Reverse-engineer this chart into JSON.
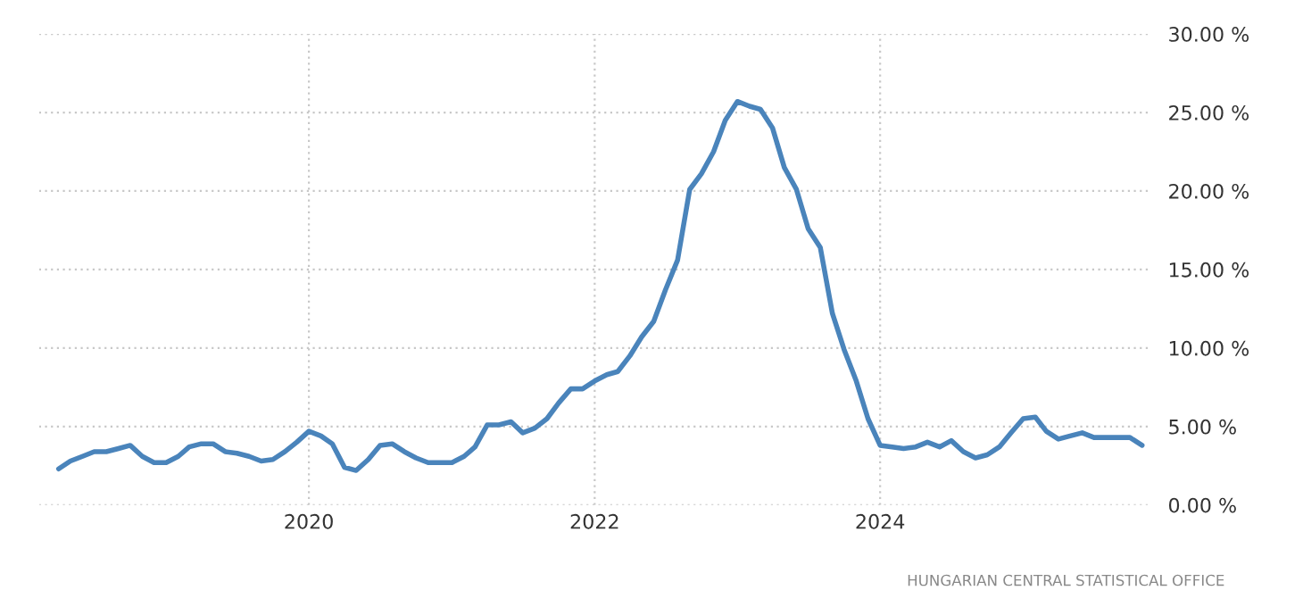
{
  "chart_data": {
    "type": "line",
    "x": [
      "2018-04",
      "2018-05",
      "2018-06",
      "2018-07",
      "2018-08",
      "2018-09",
      "2018-10",
      "2018-11",
      "2018-12",
      "2019-01",
      "2019-02",
      "2019-03",
      "2019-04",
      "2019-05",
      "2019-06",
      "2019-07",
      "2019-08",
      "2019-09",
      "2019-10",
      "2019-11",
      "2019-12",
      "2020-01",
      "2020-02",
      "2020-03",
      "2020-04",
      "2020-05",
      "2020-06",
      "2020-07",
      "2020-08",
      "2020-09",
      "2020-10",
      "2020-11",
      "2020-12",
      "2021-01",
      "2021-02",
      "2021-03",
      "2021-04",
      "2021-05",
      "2021-06",
      "2021-07",
      "2021-08",
      "2021-09",
      "2021-10",
      "2021-11",
      "2021-12",
      "2022-01",
      "2022-02",
      "2022-03",
      "2022-04",
      "2022-05",
      "2022-06",
      "2022-07",
      "2022-08",
      "2022-09",
      "2022-10",
      "2022-11",
      "2022-12",
      "2023-01",
      "2023-02",
      "2023-03",
      "2023-04",
      "2023-05",
      "2023-06",
      "2023-07",
      "2023-08",
      "2023-09",
      "2023-10",
      "2023-11",
      "2023-12",
      "2024-01",
      "2024-02",
      "2024-03",
      "2024-04",
      "2024-05",
      "2024-06",
      "2024-07",
      "2024-08",
      "2024-09",
      "2024-10",
      "2024-11",
      "2024-12",
      "2025-01",
      "2025-02",
      "2025-03",
      "2025-04",
      "2025-05",
      "2025-06",
      "2025-07",
      "2025-08",
      "2025-09",
      "2025-10",
      "2025-11"
    ],
    "series": [
      {
        "color": "#4a84bb",
        "values": [
          2.3,
          2.8,
          3.1,
          3.4,
          3.4,
          3.6,
          3.8,
          3.1,
          2.7,
          2.7,
          3.1,
          3.7,
          3.9,
          3.9,
          3.4,
          3.3,
          3.1,
          2.8,
          2.9,
          3.4,
          4.0,
          4.7,
          4.4,
          3.9,
          2.4,
          2.2,
          2.9,
          3.8,
          3.9,
          3.4,
          3.0,
          2.7,
          2.7,
          2.7,
          3.1,
          3.7,
          5.1,
          5.1,
          5.3,
          4.6,
          4.9,
          5.5,
          6.5,
          7.4,
          7.4,
          7.9,
          8.3,
          8.5,
          9.5,
          10.7,
          11.7,
          13.7,
          15.6,
          20.1,
          21.1,
          22.5,
          24.5,
          25.7,
          25.4,
          25.2,
          24.0,
          21.5,
          20.1,
          17.6,
          16.4,
          12.2,
          9.9,
          7.9,
          5.5,
          3.8,
          3.7,
          3.6,
          3.7,
          4.0,
          3.7,
          4.1,
          3.4,
          3.0,
          3.2,
          3.7,
          4.6,
          5.5,
          5.6,
          4.7,
          4.2,
          4.4,
          4.6,
          4.3,
          4.3,
          4.3,
          4.3,
          3.8
        ]
      }
    ],
    "xlim": [
      "2018-02-10",
      "2025-11-16"
    ],
    "xticks": [
      {
        "value": "2020",
        "label": "2020"
      },
      {
        "value": "2022",
        "label": "2022"
      },
      {
        "value": "2024",
        "label": "2024"
      }
    ],
    "ylim": [
      0,
      30
    ],
    "yticks": [
      {
        "value": 0,
        "label": "0.00 %"
      },
      {
        "value": 5,
        "label": "5.00 %"
      },
      {
        "value": 10,
        "label": "10.00 %"
      },
      {
        "value": 15,
        "label": "15.00 %"
      },
      {
        "value": 20,
        "label": "20.00 %"
      },
      {
        "value": 25,
        "label": "25.00 %"
      },
      {
        "value": 30,
        "label": "30.00 %"
      }
    ],
    "grid": true,
    "annotations": [
      "HUNGARIAN CENTRAL STATISTICAL OFFICE"
    ]
  }
}
